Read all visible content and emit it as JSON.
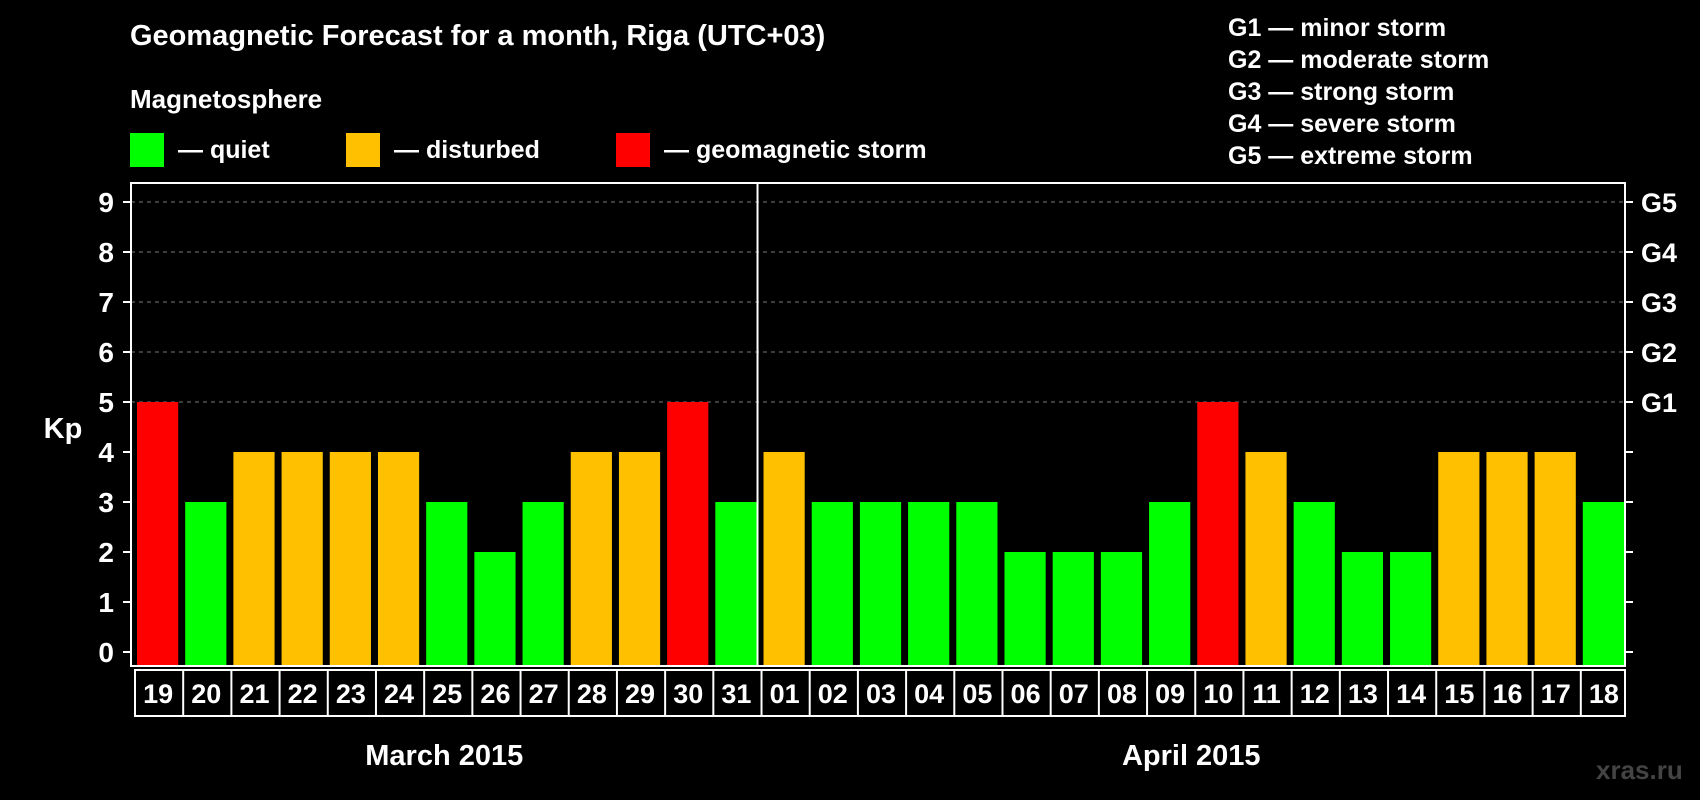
{
  "title": "Geomagnetic Forecast for a month, Riga (UTC+03)",
  "subtitle": "Magnetosphere",
  "legend": [
    {
      "label": "— quiet",
      "color": "#00ff00"
    },
    {
      "label": "— disturbed",
      "color": "#ffc000"
    },
    {
      "label": "— geomagnetic storm",
      "color": "#ff0000"
    }
  ],
  "storm_levels": [
    "G1 — minor storm",
    "G2 — moderate storm",
    "G3 — strong storm",
    "G4 — severe storm",
    "G5 — extreme storm"
  ],
  "watermark": "xras.ru",
  "colors": {
    "quiet": "#00ff00",
    "disturbed": "#ffc000",
    "storm": "#ff0000"
  },
  "chart_data": {
    "type": "bar",
    "title": "Geomagnetic Forecast for a month, Riga (UTC+03)",
    "ylabel": "Kp",
    "ylim": [
      0,
      9
    ],
    "yticks": [
      "0",
      "1",
      "2",
      "3",
      "4",
      "5",
      "6",
      "7",
      "8",
      "9"
    ],
    "right_axis_labels": [
      {
        "kp": 5,
        "label": "G1"
      },
      {
        "kp": 6,
        "label": "G2"
      },
      {
        "kp": 7,
        "label": "G3"
      },
      {
        "kp": 8,
        "label": "G4"
      },
      {
        "kp": 9,
        "label": "G5"
      }
    ],
    "months": [
      {
        "label": "March 2015",
        "start": 0,
        "count": 13
      },
      {
        "label": "April 2015",
        "start": 13,
        "count": 18
      }
    ],
    "categories": [
      "19",
      "20",
      "21",
      "22",
      "23",
      "24",
      "25",
      "26",
      "27",
      "28",
      "29",
      "30",
      "31",
      "01",
      "02",
      "03",
      "04",
      "05",
      "06",
      "07",
      "08",
      "09",
      "10",
      "11",
      "12",
      "13",
      "14",
      "15",
      "16",
      "17",
      "18"
    ],
    "values": [
      5,
      3,
      4,
      4,
      4,
      4,
      3,
      2,
      3,
      4,
      4,
      5,
      3,
      4,
      3,
      3,
      3,
      3,
      2,
      2,
      2,
      3,
      5,
      4,
      3,
      2,
      2,
      4,
      4,
      4,
      3
    ],
    "status": [
      "storm",
      "quiet",
      "disturbed",
      "disturbed",
      "disturbed",
      "disturbed",
      "quiet",
      "quiet",
      "quiet",
      "disturbed",
      "disturbed",
      "storm",
      "quiet",
      "disturbed",
      "quiet",
      "quiet",
      "quiet",
      "quiet",
      "quiet",
      "quiet",
      "quiet",
      "quiet",
      "storm",
      "disturbed",
      "quiet",
      "quiet",
      "quiet",
      "disturbed",
      "disturbed",
      "disturbed",
      "quiet"
    ]
  }
}
